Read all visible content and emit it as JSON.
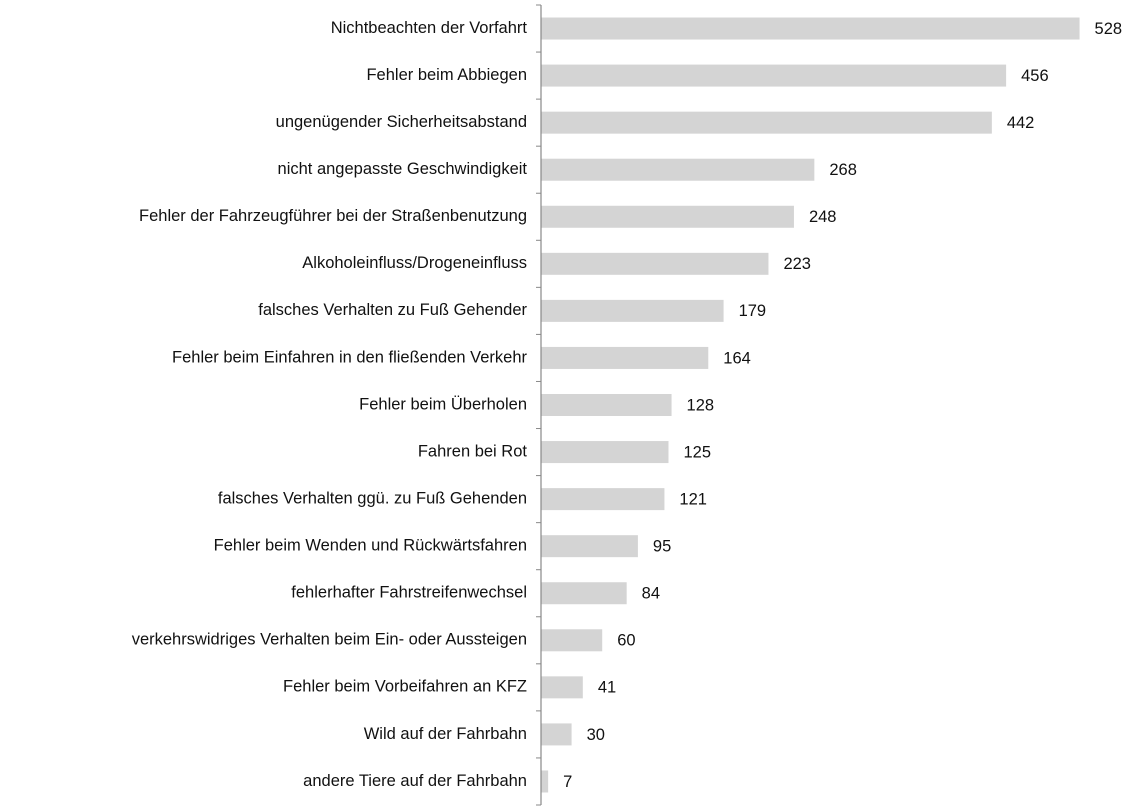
{
  "chart_data": {
    "type": "barh",
    "categories": [
      "Nichtbeachten der Vorfahrt",
      "Fehler beim Abbiegen",
      "ungenügender Sicherheitsabstand",
      "nicht angepasste Geschwindigkeit",
      "Fehler der Fahrzeugführer bei der Straßenbenutzung",
      "Alkoholeinfluss/Drogeneinfluss",
      "falsches Verhalten zu Fuß Gehender",
      "Fehler beim Einfahren in den fließenden Verkehr",
      "Fehler beim Überholen",
      "Fahren bei Rot",
      "falsches Verhalten ggü. zu Fuß Gehenden",
      "Fehler beim Wenden und Rückwärtsfahren",
      "fehlerhafter Fahrstreifenwechsel",
      "verkehrswidriges Verhalten beim Ein- oder Aussteigen",
      "Fehler beim Vorbeifahren an KFZ",
      "Wild auf der Fahrbahn",
      "andere Tiere auf der Fahrbahn"
    ],
    "values": [
      528,
      456,
      442,
      268,
      248,
      223,
      179,
      164,
      128,
      125,
      121,
      95,
      84,
      60,
      41,
      30,
      7
    ],
    "color": "#d4d4d4",
    "xlim": [
      0,
      550
    ]
  }
}
